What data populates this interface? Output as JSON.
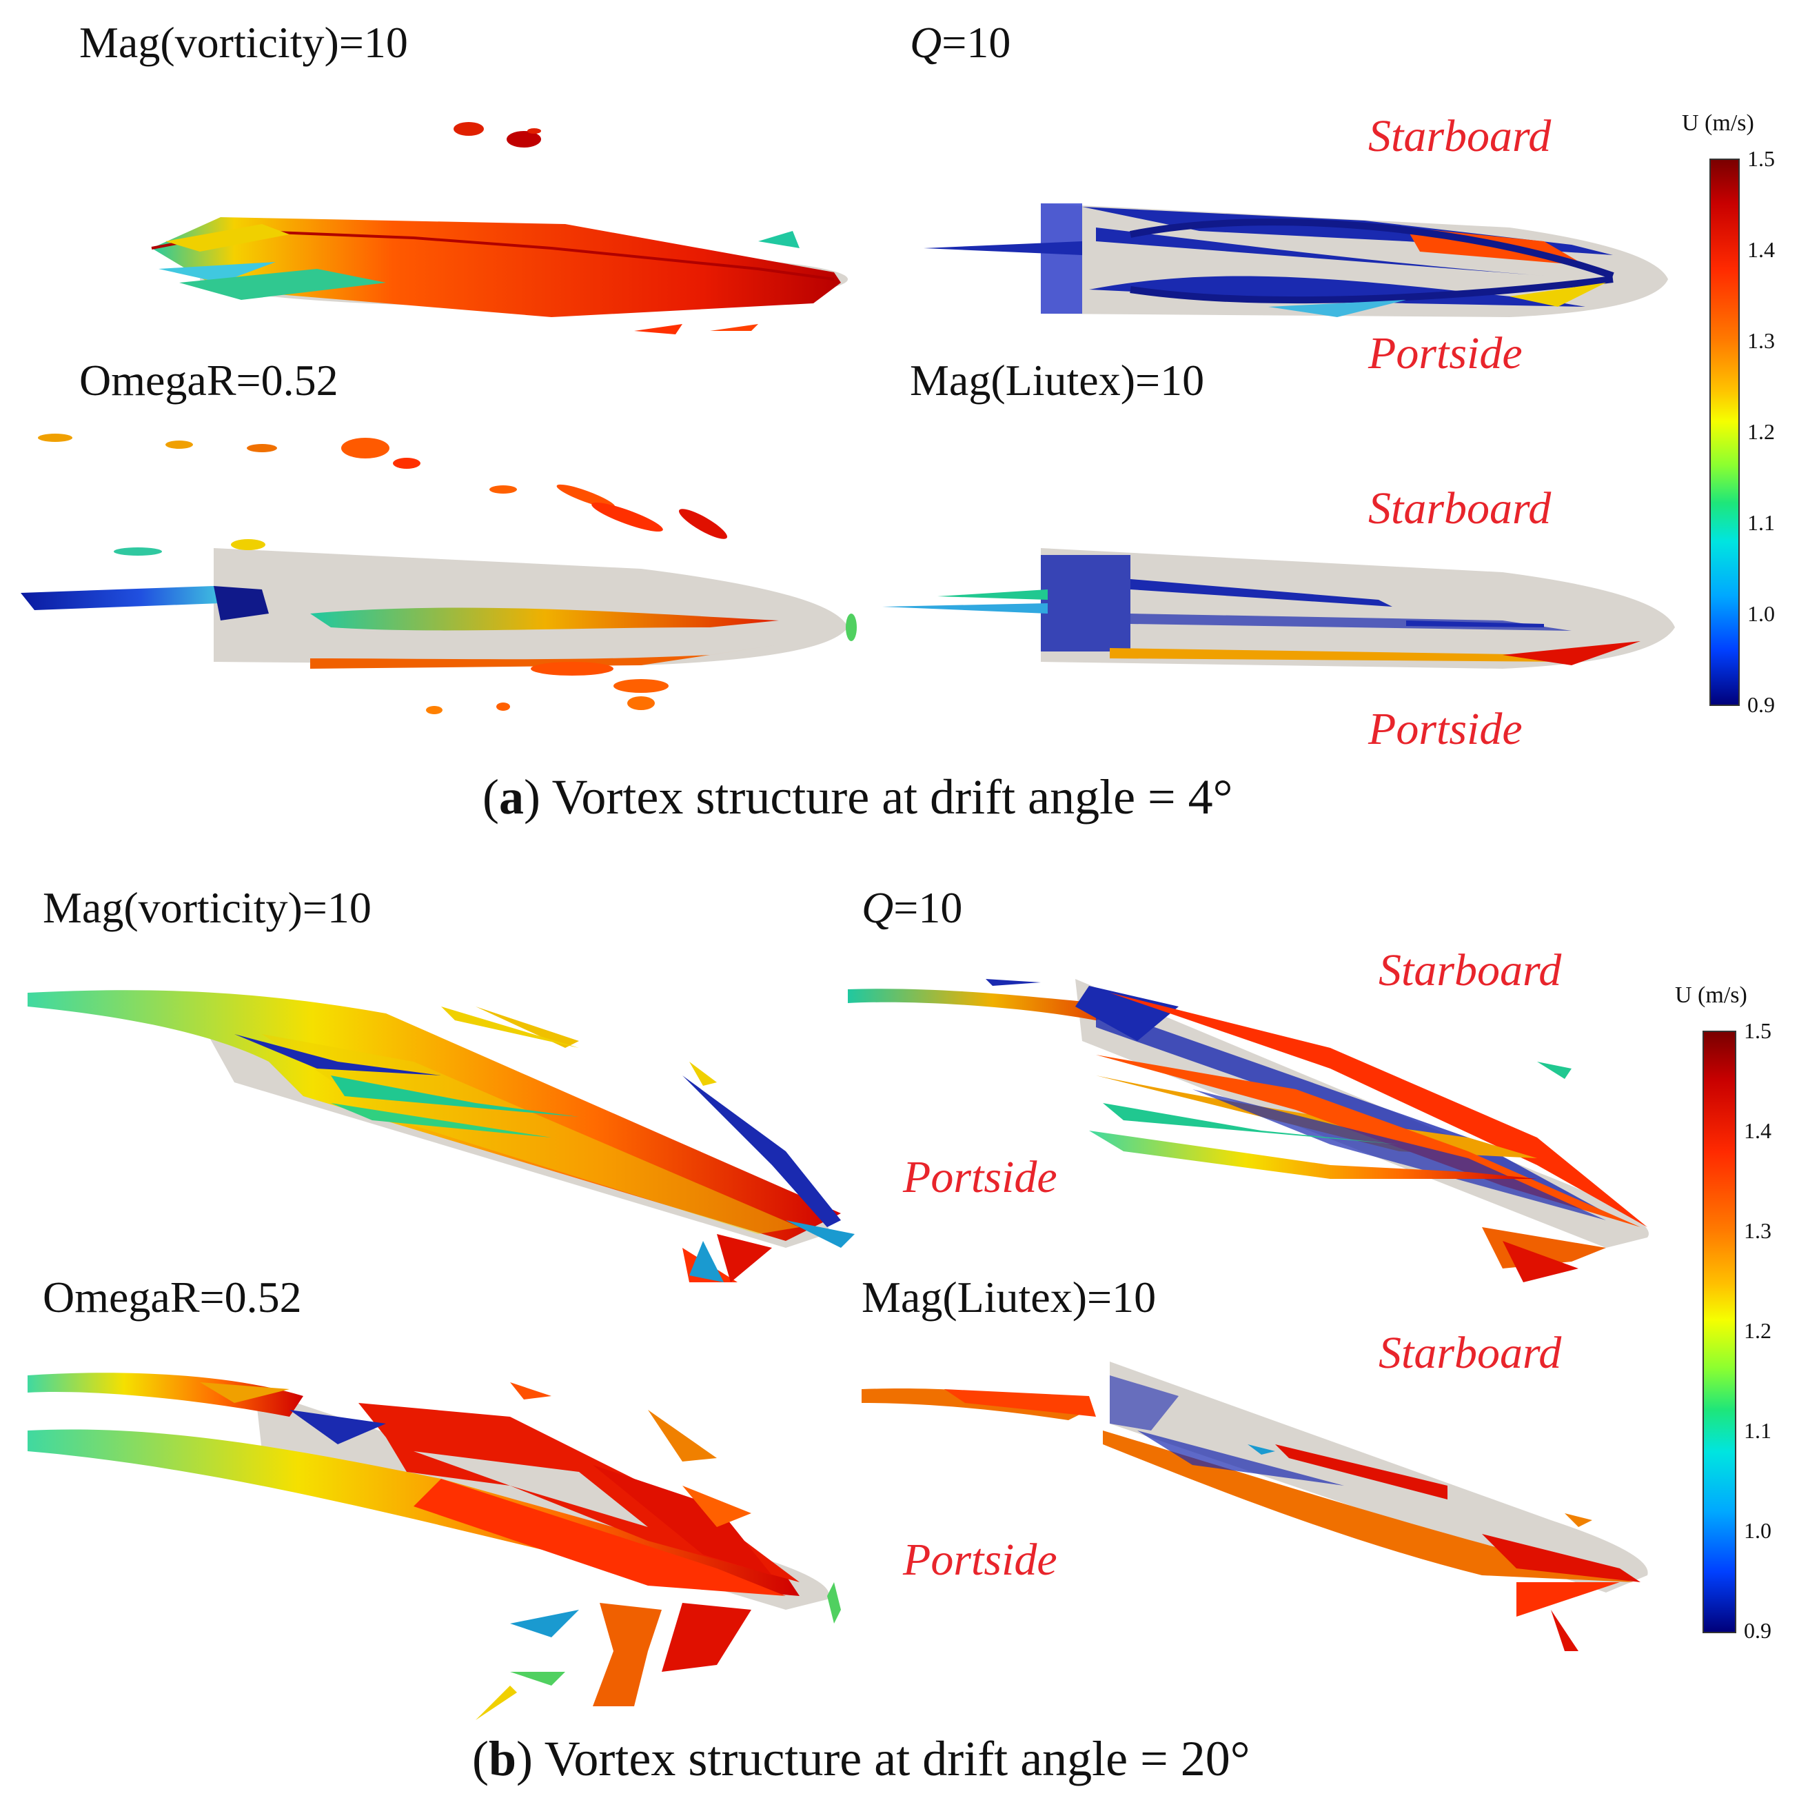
{
  "panel_a": {
    "labels": {
      "vorticity": "Mag(vorticity)=10",
      "q_var": "Q",
      "q_rest": "=10",
      "omega": "OmegaR=0.52",
      "liutex": "Mag(Liutex)=10"
    },
    "sides": {
      "starboard_top": "Starboard",
      "portside_top": "Portside",
      "starboard_bottom": "Starboard",
      "portside_bottom": "Portside"
    },
    "caption_letter": "a",
    "caption_text": "Vortex structure at drift angle = 4°",
    "colorbar": {
      "title": "U (m/s)",
      "ticks": [
        "1.5",
        "1.4",
        "1.3",
        "1.2",
        "1.1",
        "1.0",
        "0.9"
      ]
    }
  },
  "panel_b": {
    "labels": {
      "vorticity": "Mag(vorticity)=10",
      "q_var": "Q",
      "q_rest": "=10",
      "omega": "OmegaR=0.52",
      "liutex": "Mag(Liutex)=10"
    },
    "sides": {
      "starboard_top": "Starboard",
      "portside_top": "Portside",
      "starboard_bottom": "Starboard",
      "portside_bottom": "Portside"
    },
    "caption_letter": "b",
    "caption_text": "Vortex structure at drift angle = 20°",
    "colorbar": {
      "title": "U (m/s)",
      "ticks": [
        "1.5",
        "1.4",
        "1.3",
        "1.2",
        "1.1",
        "1.0",
        "0.9"
      ]
    }
  },
  "colors": {
    "hull": "#d9d5cf",
    "label_red": "#e8242b",
    "high": "#e01a00",
    "mid": "#f0e000",
    "low": "#0a1aa0"
  }
}
